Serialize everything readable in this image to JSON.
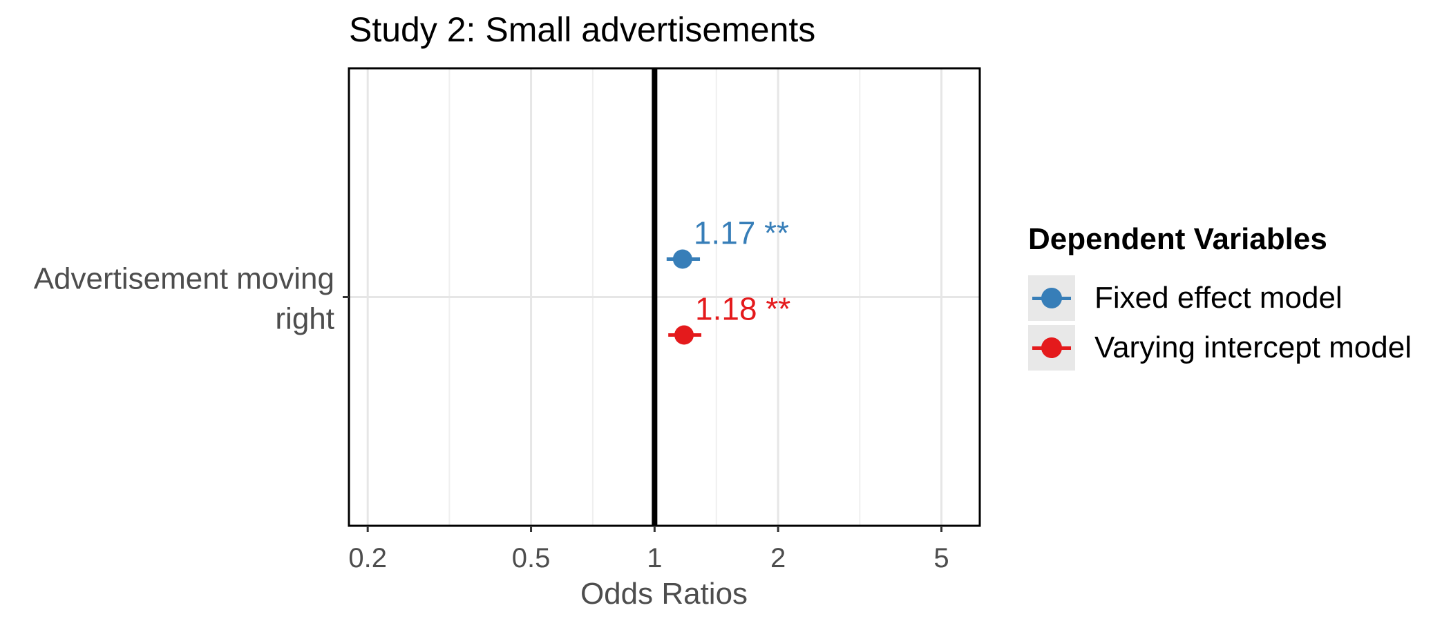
{
  "chart_data": {
    "type": "scatter",
    "title": "Study 2: Small advertisements",
    "xlabel": "Odds Ratios",
    "ylabel": "",
    "x_scale": "log",
    "xlim": [
      0.18,
      6.2
    ],
    "x_ticks": [
      0.2,
      0.5,
      1,
      2,
      5
    ],
    "x_tick_labels": [
      "0.2",
      "0.5",
      "1",
      "2",
      "5"
    ],
    "reference_line": 1,
    "grid": true,
    "categories": [
      "Advertisement moving right"
    ],
    "category_label_lines": [
      "Advertisement moving",
      "right"
    ],
    "legend": {
      "title": "Dependent Variables",
      "position": "right"
    },
    "series": [
      {
        "name": "Fixed effect model",
        "color": "#377eb8",
        "estimate": 1.17,
        "ci_low": 1.07,
        "ci_high": 1.29,
        "label": "1.17 **"
      },
      {
        "name": "Varying intercept model",
        "color": "#e41a1c",
        "estimate": 1.18,
        "ci_low": 1.08,
        "ci_high": 1.3,
        "label": "1.18 **"
      }
    ]
  }
}
